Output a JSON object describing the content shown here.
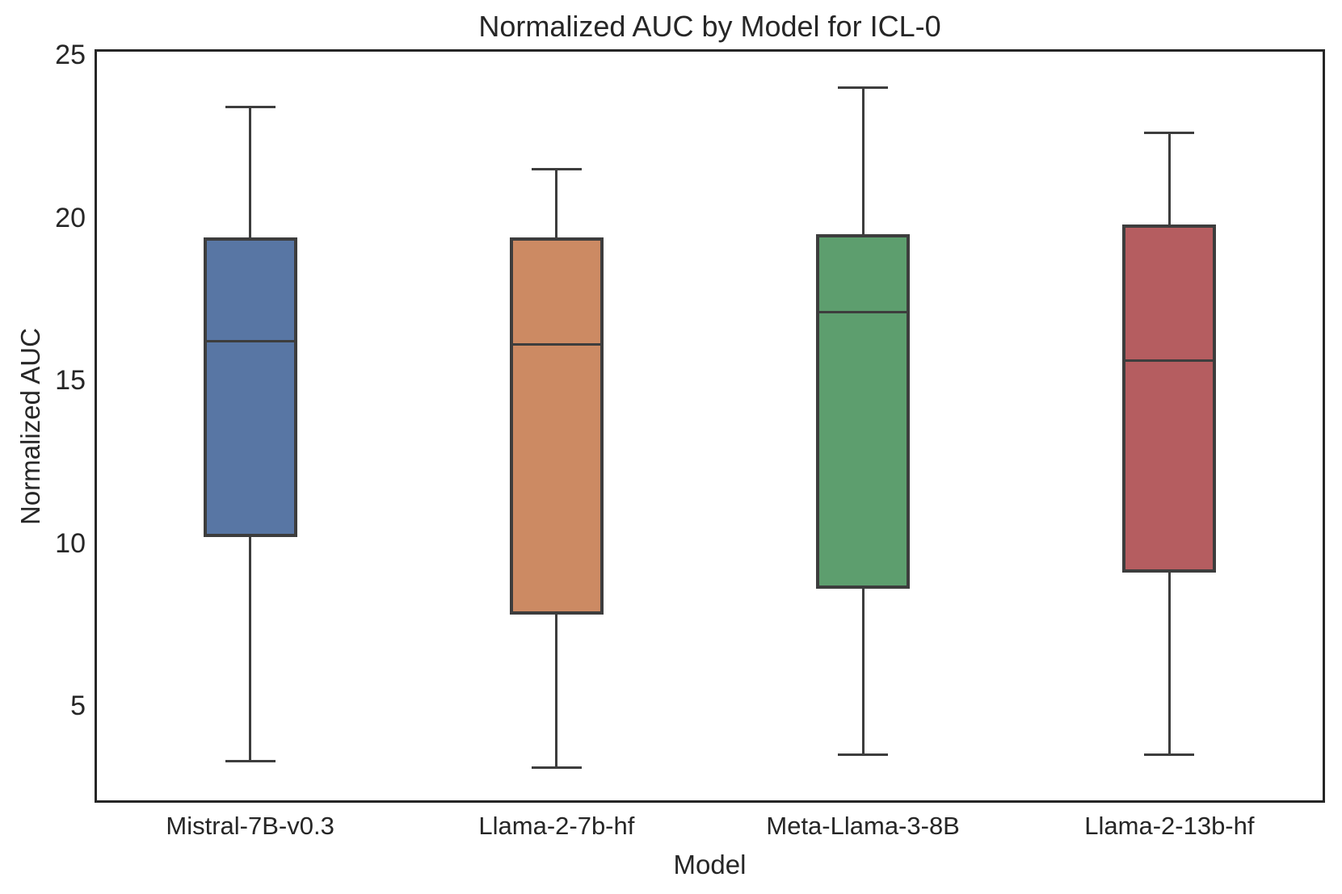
{
  "chart_data": {
    "type": "box",
    "title": "Normalized AUC by Model for ICL-0",
    "xlabel": "Model",
    "ylabel": "Normalized AUC",
    "ylim": [
      2.1,
      25.1
    ],
    "yticks": [
      5,
      10,
      15,
      20,
      25
    ],
    "grid": false,
    "legend": false,
    "categories": [
      "Mistral-7B-v0.3",
      "Llama-2-7b-hf",
      "Meta-Llama-3-8B",
      "Llama-2-13b-hf"
    ],
    "series": [
      {
        "name": "Mistral-7B-v0.3",
        "whisker_low": 3.3,
        "q1": 10.2,
        "median": 16.2,
        "q3": 19.4,
        "whisker_high": 23.4,
        "color": "#5876A4"
      },
      {
        "name": "Llama-2-7b-hf",
        "whisker_low": 3.1,
        "q1": 7.8,
        "median": 16.1,
        "q3": 19.4,
        "whisker_high": 21.5,
        "color": "#CC8A63"
      },
      {
        "name": "Meta-Llama-3-8B",
        "whisker_low": 3.5,
        "q1": 8.6,
        "median": 17.1,
        "q3": 19.5,
        "whisker_high": 24.0,
        "color": "#5D9E6E"
      },
      {
        "name": "Llama-2-13b-hf",
        "whisker_low": 3.5,
        "q1": 9.1,
        "median": 15.6,
        "q3": 19.8,
        "whisker_high": 22.6,
        "color": "#B55D60"
      }
    ],
    "line_color": "#3d3d3d",
    "text_color": "#262626"
  }
}
